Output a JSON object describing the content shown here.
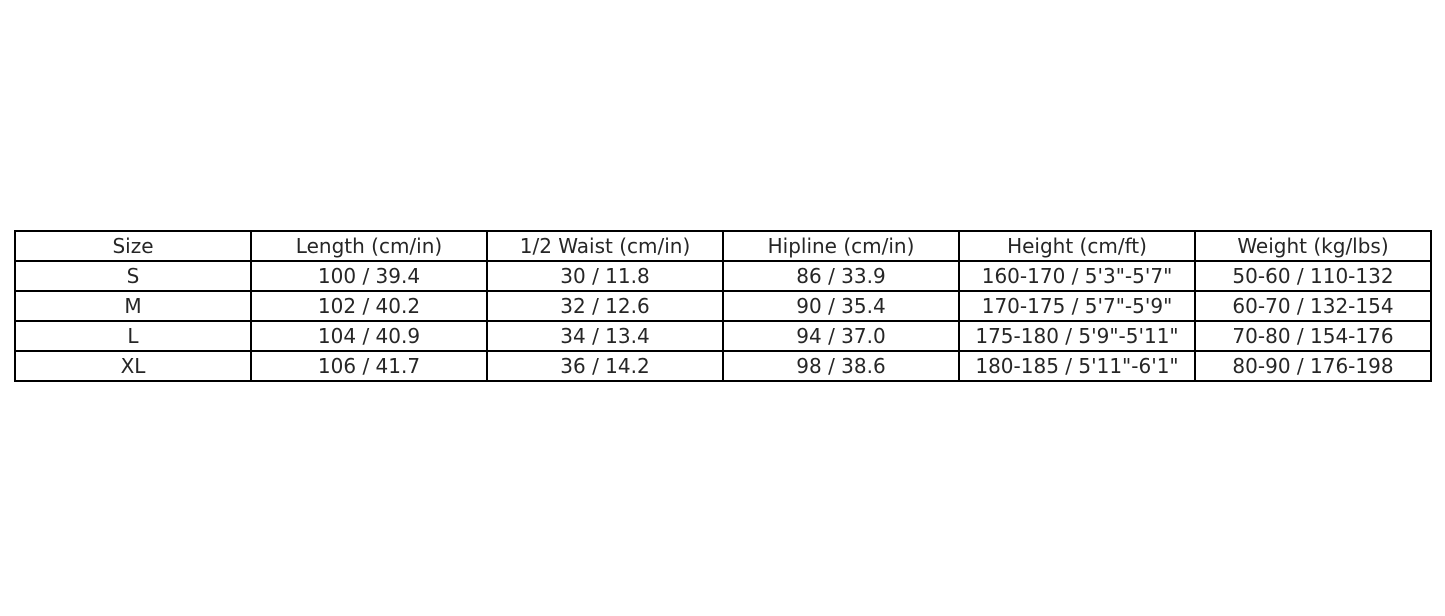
{
  "page": {
    "background_color": "#ffffff",
    "border_color": "#000000",
    "text_color": "#262626"
  },
  "table": {
    "headers": [
      "Size",
      "Length (cm/in)",
      "1/2 Waist (cm/in)",
      "Hipline (cm/in)",
      "Height (cm/ft)",
      "Weight (kg/lbs)"
    ],
    "rows": [
      [
        "S",
        "100 / 39.4",
        "30 / 11.8",
        "86 / 33.9",
        "160-170 / 5'3\"-5'7\"",
        "50-60 / 110-132"
      ],
      [
        "M",
        "102 / 40.2",
        "32 / 12.6",
        "90 / 35.4",
        "170-175 / 5'7\"-5'9\"",
        "60-70 / 132-154"
      ],
      [
        "L",
        "104 / 40.9",
        "34 / 13.4",
        "94 / 37.0",
        "175-180 / 5'9\"-5'11\"",
        "70-80 / 154-176"
      ],
      [
        "XL",
        "106 / 41.7",
        "36 / 14.2",
        "98 / 38.6",
        "180-185 / 5'11\"-6'1\"",
        "80-90 / 176-198"
      ]
    ]
  },
  "chart_data": {
    "type": "table",
    "title": "",
    "columns": [
      "Size",
      "Length (cm/in)",
      "1/2 Waist (cm/in)",
      "Hipline (cm/in)",
      "Height (cm/ft)",
      "Weight (kg/lbs)"
    ],
    "rows": [
      [
        "S",
        "100 / 39.4",
        "30 / 11.8",
        "86 / 33.9",
        "160-170 / 5'3\"-5'7\"",
        "50-60 / 110-132"
      ],
      [
        "M",
        "102 / 40.2",
        "32 / 12.6",
        "90 / 35.4",
        "170-175 / 5'7\"-5'9\"",
        "60-70 / 132-154"
      ],
      [
        "L",
        "104 / 40.9",
        "34 / 13.4",
        "94 / 37.0",
        "175-180 / 5'9\"-5'11\"",
        "70-80 / 154-176"
      ],
      [
        "XL",
        "106 / 41.7",
        "36 / 14.2",
        "98 / 38.6",
        "180-185 / 5'11\"-6'1\"",
        "80-90 / 176-198"
      ]
    ],
    "layout": {
      "grid": true,
      "header_row": true,
      "cell_alignment": "center",
      "column_count": 6,
      "data_row_count": 4
    }
  }
}
